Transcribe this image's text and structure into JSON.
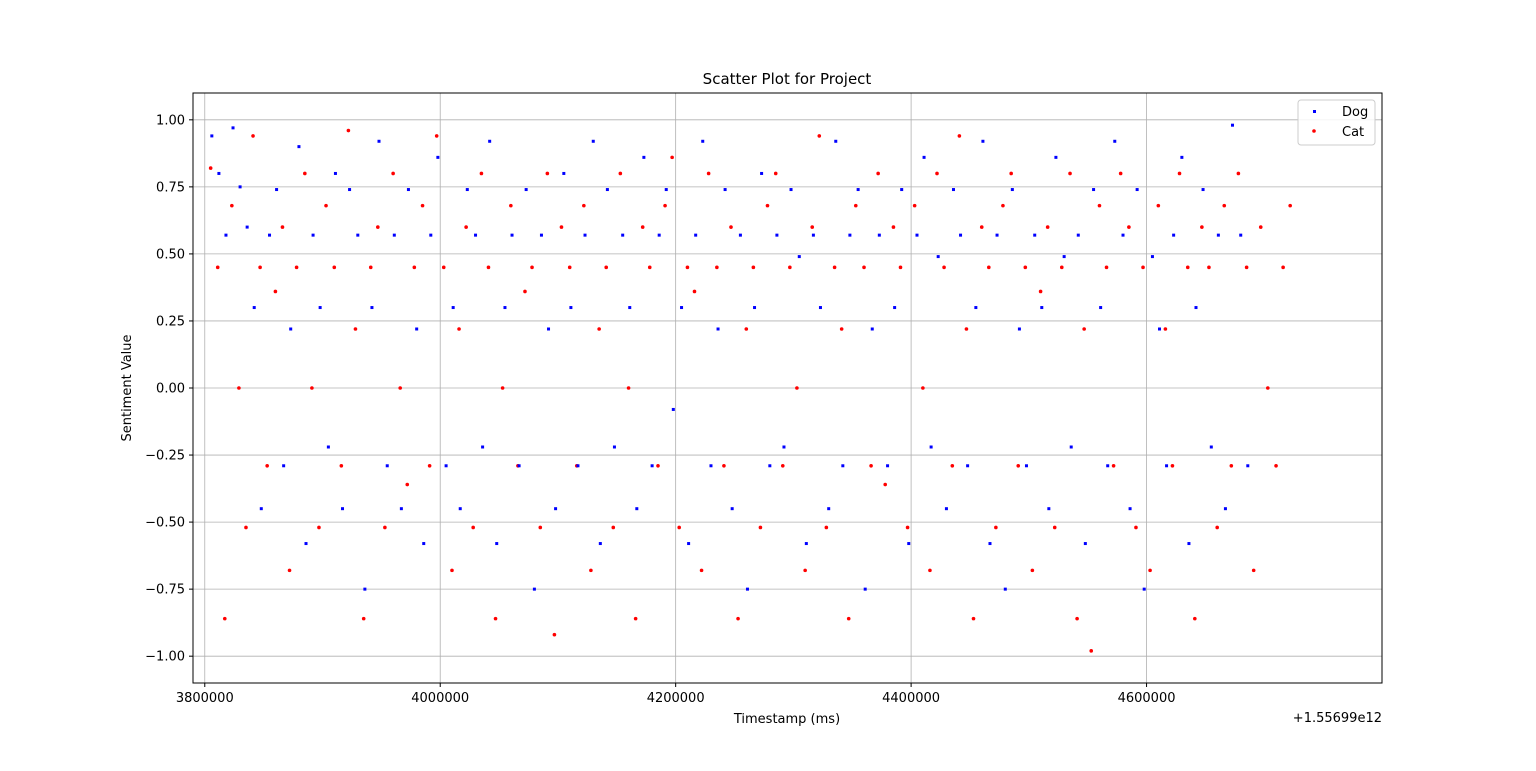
{
  "chart_data": {
    "type": "scatter",
    "title": "Scatter Plot for Project",
    "xlabel": "Timestamp (ms)",
    "ylabel": "Sentiment Value",
    "x_offset_label": "+1.55699e12",
    "xlim": [
      3790000,
      4800000
    ],
    "ylim": [
      -1.1,
      1.1
    ],
    "x_ticks": [
      3800000,
      4000000,
      4200000,
      4400000,
      4600000
    ],
    "x_tick_labels": [
      "3800000",
      "4000000",
      "4200000",
      "4400000",
      "4600000"
    ],
    "y_ticks": [
      1.0,
      0.75,
      0.5,
      0.25,
      0.0,
      -0.25,
      -0.5,
      -0.75,
      -1.0
    ],
    "y_tick_labels": [
      "1.00",
      "0.75",
      "0.50",
      "0.25",
      "0.00",
      "−0.25",
      "−0.50",
      "−0.75",
      "−1.00"
    ],
    "grid": true,
    "legend_position": "top-right",
    "series": [
      {
        "name": "Dog",
        "color": "#0000ff",
        "points": [
          [
            3806000,
            0.94
          ],
          [
            3812000,
            0.8
          ],
          [
            3818000,
            0.57
          ],
          [
            3824000,
            0.97
          ],
          [
            3830000,
            0.75
          ],
          [
            3836000,
            0.6
          ],
          [
            3842000,
            0.3
          ],
          [
            3848000,
            -0.45
          ],
          [
            3855000,
            0.57
          ],
          [
            3861000,
            0.74
          ],
          [
            3867000,
            -0.29
          ],
          [
            3873000,
            0.22
          ],
          [
            3880000,
            0.9
          ],
          [
            3886000,
            -0.58
          ],
          [
            3892000,
            0.57
          ],
          [
            3898000,
            0.3
          ],
          [
            3905000,
            -0.22
          ],
          [
            3911000,
            0.8
          ],
          [
            3917000,
            -0.45
          ],
          [
            3923000,
            0.74
          ],
          [
            3930000,
            0.57
          ],
          [
            3936000,
            -0.75
          ],
          [
            3942000,
            0.3
          ],
          [
            3948000,
            0.92
          ],
          [
            3955000,
            -0.29
          ],
          [
            3961000,
            0.57
          ],
          [
            3967000,
            -0.45
          ],
          [
            3973000,
            0.74
          ],
          [
            3980000,
            0.22
          ],
          [
            3986000,
            -0.58
          ],
          [
            3992000,
            0.57
          ],
          [
            3998000,
            0.86
          ],
          [
            4005000,
            -0.29
          ],
          [
            4011000,
            0.3
          ],
          [
            4017000,
            -0.45
          ],
          [
            4023000,
            0.74
          ],
          [
            4030000,
            0.57
          ],
          [
            4036000,
            -0.22
          ],
          [
            4042000,
            0.92
          ],
          [
            4048000,
            -0.58
          ],
          [
            4055000,
            0.3
          ],
          [
            4061000,
            0.57
          ],
          [
            4067000,
            -0.29
          ],
          [
            4073000,
            0.74
          ],
          [
            4080000,
            -0.75
          ],
          [
            4086000,
            0.57
          ],
          [
            4092000,
            0.22
          ],
          [
            4098000,
            -0.45
          ],
          [
            4105000,
            0.8
          ],
          [
            4111000,
            0.3
          ],
          [
            4117000,
            -0.29
          ],
          [
            4123000,
            0.57
          ],
          [
            4130000,
            0.92
          ],
          [
            4136000,
            -0.58
          ],
          [
            4142000,
            0.74
          ],
          [
            4148000,
            -0.22
          ],
          [
            4155000,
            0.57
          ],
          [
            4161000,
            0.3
          ],
          [
            4167000,
            -0.45
          ],
          [
            4173000,
            0.86
          ],
          [
            4180000,
            -0.29
          ],
          [
            4186000,
            0.57
          ],
          [
            4192000,
            0.74
          ],
          [
            4198000,
            -0.08
          ],
          [
            4205000,
            0.3
          ],
          [
            4211000,
            -0.58
          ],
          [
            4217000,
            0.57
          ],
          [
            4223000,
            0.92
          ],
          [
            4230000,
            -0.29
          ],
          [
            4236000,
            0.22
          ],
          [
            4242000,
            0.74
          ],
          [
            4248000,
            -0.45
          ],
          [
            4255000,
            0.57
          ],
          [
            4261000,
            -0.75
          ],
          [
            4267000,
            0.3
          ],
          [
            4273000,
            0.8
          ],
          [
            4280000,
            -0.29
          ],
          [
            4286000,
            0.57
          ],
          [
            4292000,
            -0.22
          ],
          [
            4298000,
            0.74
          ],
          [
            4305000,
            0.49
          ],
          [
            4311000,
            -0.58
          ],
          [
            4317000,
            0.57
          ],
          [
            4323000,
            0.3
          ],
          [
            4330000,
            -0.45
          ],
          [
            4336000,
            0.92
          ],
          [
            4342000,
            -0.29
          ],
          [
            4348000,
            0.57
          ],
          [
            4355000,
            0.74
          ],
          [
            4361000,
            -0.75
          ],
          [
            4367000,
            0.22
          ],
          [
            4373000,
            0.57
          ],
          [
            4380000,
            -0.29
          ],
          [
            4386000,
            0.3
          ],
          [
            4392000,
            0.74
          ],
          [
            4398000,
            -0.58
          ],
          [
            4405000,
            0.57
          ],
          [
            4411000,
            0.86
          ],
          [
            4417000,
            -0.22
          ],
          [
            4423000,
            0.49
          ],
          [
            4430000,
            -0.45
          ],
          [
            4436000,
            0.74
          ],
          [
            4442000,
            0.57
          ],
          [
            4448000,
            -0.29
          ],
          [
            4455000,
            0.3
          ],
          [
            4461000,
            0.92
          ],
          [
            4467000,
            -0.58
          ],
          [
            4473000,
            0.57
          ],
          [
            4480000,
            -0.75
          ],
          [
            4486000,
            0.74
          ],
          [
            4492000,
            0.22
          ],
          [
            4498000,
            -0.29
          ],
          [
            4505000,
            0.57
          ],
          [
            4511000,
            0.3
          ],
          [
            4517000,
            -0.45
          ],
          [
            4523000,
            0.86
          ],
          [
            4530000,
            0.49
          ],
          [
            4536000,
            -0.22
          ],
          [
            4542000,
            0.57
          ],
          [
            4548000,
            -0.58
          ],
          [
            4555000,
            0.74
          ],
          [
            4561000,
            0.3
          ],
          [
            4567000,
            -0.29
          ],
          [
            4573000,
            0.92
          ],
          [
            4580000,
            0.57
          ],
          [
            4586000,
            -0.45
          ],
          [
            4592000,
            0.74
          ],
          [
            4598000,
            -0.75
          ],
          [
            4605000,
            0.49
          ],
          [
            4611000,
            0.22
          ],
          [
            4617000,
            -0.29
          ],
          [
            4623000,
            0.57
          ],
          [
            4630000,
            0.86
          ],
          [
            4636000,
            -0.58
          ],
          [
            4642000,
            0.3
          ],
          [
            4648000,
            0.74
          ],
          [
            4655000,
            -0.22
          ],
          [
            4661000,
            0.57
          ],
          [
            4667000,
            -0.45
          ],
          [
            4673000,
            0.98
          ],
          [
            4680000,
            0.57
          ],
          [
            4686000,
            -0.29
          ]
        ]
      },
      {
        "name": "Cat",
        "color": "#ff0000",
        "points": [
          [
            3805000,
            0.82
          ],
          [
            3811000,
            0.45
          ],
          [
            3817000,
            -0.86
          ],
          [
            3823000,
            0.68
          ],
          [
            3829000,
            0.0
          ],
          [
            3835000,
            -0.52
          ],
          [
            3841000,
            0.94
          ],
          [
            3847000,
            0.45
          ],
          [
            3853000,
            -0.29
          ],
          [
            3860000,
            0.36
          ],
          [
            3866000,
            0.6
          ],
          [
            3872000,
            -0.68
          ],
          [
            3878000,
            0.45
          ],
          [
            3885000,
            0.8
          ],
          [
            3891000,
            0.0
          ],
          [
            3897000,
            -0.52
          ],
          [
            3903000,
            0.68
          ],
          [
            3910000,
            0.45
          ],
          [
            3916000,
            -0.29
          ],
          [
            3922000,
            0.96
          ],
          [
            3928000,
            0.22
          ],
          [
            3935000,
            -0.86
          ],
          [
            3941000,
            0.45
          ],
          [
            3947000,
            0.6
          ],
          [
            3953000,
            -0.52
          ],
          [
            3960000,
            0.8
          ],
          [
            3966000,
            0.0
          ],
          [
            3972000,
            -0.36
          ],
          [
            3978000,
            0.45
          ],
          [
            3985000,
            0.68
          ],
          [
            3991000,
            -0.29
          ],
          [
            3997000,
            0.94
          ],
          [
            4003000,
            0.45
          ],
          [
            4010000,
            -0.68
          ],
          [
            4016000,
            0.22
          ],
          [
            4022000,
            0.6
          ],
          [
            4028000,
            -0.52
          ],
          [
            4035000,
            0.8
          ],
          [
            4041000,
            0.45
          ],
          [
            4047000,
            -0.86
          ],
          [
            4053000,
            0.0
          ],
          [
            4060000,
            0.68
          ],
          [
            4066000,
            -0.29
          ],
          [
            4072000,
            0.36
          ],
          [
            4078000,
            0.45
          ],
          [
            4085000,
            -0.52
          ],
          [
            4091000,
            0.8
          ],
          [
            4097000,
            -0.92
          ],
          [
            4103000,
            0.6
          ],
          [
            4110000,
            0.45
          ],
          [
            4116000,
            -0.29
          ],
          [
            4122000,
            0.68
          ],
          [
            4128000,
            -0.68
          ],
          [
            4135000,
            0.22
          ],
          [
            4141000,
            0.45
          ],
          [
            4147000,
            -0.52
          ],
          [
            4153000,
            0.8
          ],
          [
            4160000,
            0.0
          ],
          [
            4166000,
            -0.86
          ],
          [
            4172000,
            0.6
          ],
          [
            4178000,
            0.45
          ],
          [
            4185000,
            -0.29
          ],
          [
            4191000,
            0.68
          ],
          [
            4197000,
            0.86
          ],
          [
            4203000,
            -0.52
          ],
          [
            4210000,
            0.45
          ],
          [
            4216000,
            0.36
          ],
          [
            4222000,
            -0.68
          ],
          [
            4228000,
            0.8
          ],
          [
            4235000,
            0.45
          ],
          [
            4241000,
            -0.29
          ],
          [
            4247000,
            0.6
          ],
          [
            4253000,
            -0.86
          ],
          [
            4260000,
            0.22
          ],
          [
            4266000,
            0.45
          ],
          [
            4272000,
            -0.52
          ],
          [
            4278000,
            0.68
          ],
          [
            4285000,
            0.8
          ],
          [
            4291000,
            -0.29
          ],
          [
            4297000,
            0.45
          ],
          [
            4303000,
            0.0
          ],
          [
            4310000,
            -0.68
          ],
          [
            4316000,
            0.6
          ],
          [
            4322000,
            0.94
          ],
          [
            4328000,
            -0.52
          ],
          [
            4335000,
            0.45
          ],
          [
            4341000,
            0.22
          ],
          [
            4347000,
            -0.86
          ],
          [
            4353000,
            0.68
          ],
          [
            4360000,
            0.45
          ],
          [
            4366000,
            -0.29
          ],
          [
            4372000,
            0.8
          ],
          [
            4378000,
            -0.36
          ],
          [
            4385000,
            0.6
          ],
          [
            4391000,
            0.45
          ],
          [
            4397000,
            -0.52
          ],
          [
            4403000,
            0.68
          ],
          [
            4410000,
            0.0
          ],
          [
            4416000,
            -0.68
          ],
          [
            4422000,
            0.8
          ],
          [
            4428000,
            0.45
          ],
          [
            4435000,
            -0.29
          ],
          [
            4441000,
            0.94
          ],
          [
            4447000,
            0.22
          ],
          [
            4453000,
            -0.86
          ],
          [
            4460000,
            0.6
          ],
          [
            4466000,
            0.45
          ],
          [
            4472000,
            -0.52
          ],
          [
            4478000,
            0.68
          ],
          [
            4485000,
            0.8
          ],
          [
            4491000,
            -0.29
          ],
          [
            4497000,
            0.45
          ],
          [
            4503000,
            -0.68
          ],
          [
            4510000,
            0.36
          ],
          [
            4516000,
            0.6
          ],
          [
            4522000,
            -0.52
          ],
          [
            4528000,
            0.45
          ],
          [
            4535000,
            0.8
          ],
          [
            4541000,
            -0.86
          ],
          [
            4547000,
            0.22
          ],
          [
            4553000,
            -0.98
          ],
          [
            4560000,
            0.68
          ],
          [
            4566000,
            0.45
          ],
          [
            4572000,
            -0.29
          ],
          [
            4578000,
            0.8
          ],
          [
            4585000,
            0.6
          ],
          [
            4591000,
            -0.52
          ],
          [
            4597000,
            0.45
          ],
          [
            4603000,
            -0.68
          ],
          [
            4610000,
            0.68
          ],
          [
            4616000,
            0.22
          ],
          [
            4622000,
            -0.29
          ],
          [
            4628000,
            0.8
          ],
          [
            4635000,
            0.45
          ],
          [
            4641000,
            -0.86
          ],
          [
            4647000,
            0.6
          ],
          [
            4653000,
            0.45
          ],
          [
            4660000,
            -0.52
          ],
          [
            4666000,
            0.68
          ],
          [
            4672000,
            -0.29
          ],
          [
            4678000,
            0.8
          ],
          [
            4685000,
            0.45
          ],
          [
            4691000,
            -0.68
          ],
          [
            4697000,
            0.6
          ],
          [
            4703000,
            0.0
          ],
          [
            4710000,
            -0.29
          ],
          [
            4716000,
            0.45
          ],
          [
            4722000,
            0.68
          ]
        ]
      }
    ]
  }
}
